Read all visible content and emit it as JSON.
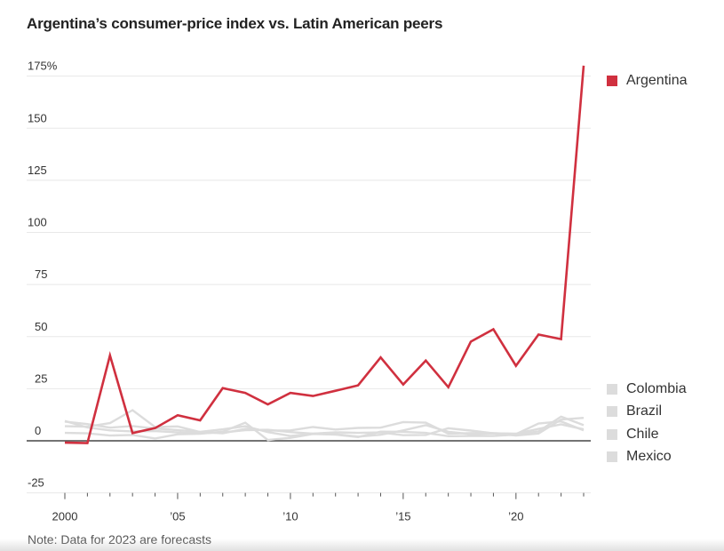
{
  "title": "Argentina’s consumer-price index vs. Latin American peers",
  "note": "Note: Data for 2023 are forecasts",
  "chart_data": {
    "type": "line",
    "title": "Argentina’s consumer-price index vs. Latin American peers",
    "xlabel": "",
    "ylabel": "",
    "x": [
      2000,
      2001,
      2002,
      2003,
      2004,
      2005,
      2006,
      2007,
      2008,
      2009,
      2010,
      2011,
      2012,
      2013,
      2014,
      2015,
      2016,
      2017,
      2018,
      2019,
      2020,
      2021,
      2022,
      2023
    ],
    "xlim": [
      2000,
      2023
    ],
    "ylim": [
      -25,
      180
    ],
    "yticks": [
      -25,
      0,
      25,
      50,
      75,
      100,
      125,
      150,
      175
    ],
    "ytick_labels": [
      "-25",
      "0",
      "25",
      "50",
      "75",
      "100",
      "125",
      "150",
      "175%"
    ],
    "xticks": [
      2000,
      2005,
      2010,
      2015,
      2020
    ],
    "xtick_labels": [
      "2000",
      "’05",
      "’10",
      "’15",
      "’20"
    ],
    "grid": true,
    "legend_placement": "right",
    "series": [
      {
        "name": "Argentina",
        "color": "#d0303f",
        "highlight": true,
        "values": [
          -0.9,
          -1.1,
          41,
          3.7,
          6.1,
          12.3,
          9.8,
          25.3,
          23,
          17.5,
          23,
          21.5,
          24,
          26.6,
          40,
          27,
          38.5,
          25.7,
          47.6,
          53.5,
          36,
          51,
          48.8,
          180
        ]
      },
      {
        "name": "Colombia",
        "color": "#dcdcdc",
        "highlight": false,
        "values": [
          9.2,
          8,
          6.3,
          7.1,
          5.9,
          5.1,
          4.3,
          5.5,
          7,
          4.2,
          2.3,
          3.4,
          3.2,
          2,
          2.9,
          5,
          7.5,
          4.3,
          3.2,
          3.5,
          2.5,
          3.5,
          10.2,
          11
        ]
      },
      {
        "name": "Brazil",
        "color": "#dcdcdc",
        "highlight": false,
        "values": [
          7,
          6.8,
          8.5,
          14.7,
          6.6,
          6.9,
          4.2,
          3.6,
          5.7,
          4.9,
          5,
          6.6,
          5.4,
          6.2,
          6.3,
          9,
          8.7,
          3.4,
          3.7,
          3.7,
          3.2,
          8.3,
          9.3,
          5
        ]
      },
      {
        "name": "Chile",
        "color": "#dcdcdc",
        "highlight": false,
        "values": [
          3.8,
          3.6,
          2.5,
          2.8,
          1.1,
          3.1,
          3.4,
          4.4,
          8.7,
          0.4,
          1.4,
          3.3,
          3,
          1.8,
          4.4,
          4.3,
          3.8,
          2.2,
          2.3,
          2.3,
          3,
          4.5,
          11.6,
          7.5
        ]
      },
      {
        "name": "Mexico",
        "color": "#dcdcdc",
        "highlight": false,
        "values": [
          9.5,
          6.4,
          5,
          4.5,
          4.7,
          4,
          3.6,
          4,
          5.1,
          5.3,
          4.2,
          3.4,
          4.1,
          3.8,
          4,
          2.7,
          2.8,
          6,
          4.9,
          3.6,
          3.4,
          5.7,
          7.9,
          5.5
        ]
      }
    ]
  },
  "legend": {
    "items": [
      {
        "label": "Argentina",
        "color": "#d0303f"
      },
      {
        "label": "Colombia",
        "color": "#dcdcdc"
      },
      {
        "label": "Brazil",
        "color": "#dcdcdc"
      },
      {
        "label": "Chile",
        "color": "#dcdcdc"
      },
      {
        "label": "Mexico",
        "color": "#dcdcdc"
      }
    ]
  }
}
